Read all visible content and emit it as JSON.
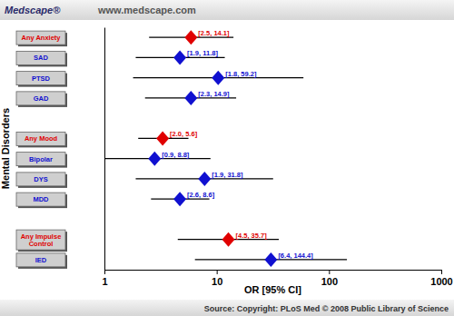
{
  "header": {
    "logo": "Medscape®",
    "url": "www.medscape.com"
  },
  "footer": {
    "source": "Source: Copyright: PLoS Med © 2008 Public Library of Science"
  },
  "chart_data": {
    "type": "forest",
    "orientation": "horizontal",
    "log": "x",
    "grid": false,
    "marker": "diamond",
    "x_label": "OR [95% CI]",
    "y_label": "Mental Disorders",
    "categories": [
      "Any Anxiety",
      "SAD",
      "PTSD",
      "GAD",
      null,
      "Any Mood",
      "Bipolar",
      "DYS",
      "MDD",
      null,
      "Any Impulse Control",
      "IED"
    ],
    "values": [
      5.9,
      4.7,
      10.3,
      5.9,
      null,
      3.3,
      2.8,
      7.8,
      4.7,
      null,
      12.7,
      30.4
    ],
    "lower": [
      2.5,
      1.9,
      1.8,
      2.3,
      null,
      2.0,
      0.9,
      1.9,
      2.6,
      null,
      4.5,
      6.4
    ],
    "upper": [
      14.1,
      11.8,
      59.2,
      14.9,
      null,
      5.6,
      8.8,
      31.8,
      8.6,
      null,
      35.7,
      144.4
    ],
    "ci_labels": [
      "[2.5, 14.1]",
      "[1.9, 11.8]",
      "[1.8, 59.2]",
      "[2.3, 14.9]",
      null,
      "[2.0, 5.6]",
      "[0.9, 8.8]",
      "[1.9, 31.8]",
      "[2.6, 8.6]",
      null,
      "[4.5, 35.7]",
      "[6.4, 144.4]"
    ],
    "colors": [
      "#e00000",
      "#1010d0",
      "#1010d0",
      "#1010d0",
      null,
      "#e00000",
      "#1010d0",
      "#1010d0",
      "#1010d0",
      null,
      "#e00000",
      "#1010d0"
    ],
    "xlim": [
      1,
      1000
    ],
    "xticks": [
      1,
      10,
      100,
      1000
    ]
  }
}
